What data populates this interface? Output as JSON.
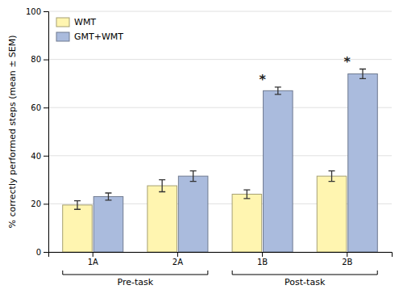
{
  "chart_data": {
    "type": "bar",
    "categories": [
      "1A",
      "2A",
      "1B",
      "2B"
    ],
    "series": [
      {
        "name": "WMT",
        "color": "#FFF5B0",
        "values": [
          19.5,
          27.5,
          24.0,
          31.5
        ],
        "errors": [
          1.8,
          2.5,
          1.8,
          2.2
        ]
      },
      {
        "name": "GMT+WMT",
        "color": "#AABBDD",
        "values": [
          23.0,
          31.5,
          67.0,
          74.0
        ],
        "errors": [
          1.5,
          2.2,
          1.5,
          2.0
        ]
      }
    ],
    "ylabel": "% correctly performed steps (mean ± SEM)",
    "ylim": [
      0,
      100
    ],
    "yticks": [
      0,
      20,
      40,
      60,
      80,
      100
    ],
    "grid": true,
    "legend": "upper-left",
    "annotations": [
      {
        "text": "*",
        "category": "1B"
      },
      {
        "text": "*",
        "category": "2B"
      }
    ],
    "group_labels": [
      {
        "text": "Pre-task",
        "from": "1A",
        "to": "2A"
      },
      {
        "text": "Post-task",
        "from": "1B",
        "to": "2B"
      }
    ]
  }
}
